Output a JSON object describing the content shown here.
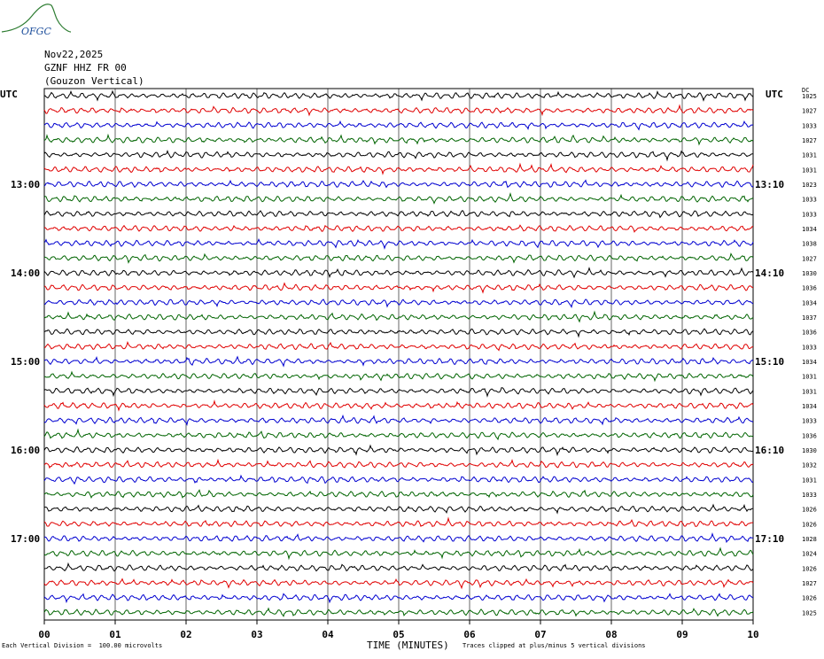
{
  "logo": {
    "text": "OFGC",
    "color": "#1e4f9c",
    "accent": "#2e7d32"
  },
  "header": {
    "date": "Nov22,2025",
    "station": "GZNF HHZ FR 00",
    "name": "(Gouzon Vertical)"
  },
  "chart_data": {
    "type": "line",
    "title": "",
    "xlabel": "TIME (MINUTES)",
    "x_ticks": [
      "00",
      "01",
      "02",
      "03",
      "04",
      "05",
      "06",
      "07",
      "08",
      "09",
      "10"
    ],
    "x_range": [
      0,
      10
    ],
    "left_axis_label": "UTC",
    "right_axis_label": "UTC",
    "dc_label": "DC",
    "left_hour_labels": [
      {
        "row": 6,
        "text": "13:00"
      },
      {
        "row": 12,
        "text": "14:00"
      },
      {
        "row": 18,
        "text": "15:00"
      },
      {
        "row": 24,
        "text": "16:00"
      },
      {
        "row": 30,
        "text": "17:00"
      }
    ],
    "right_hour_labels": [
      {
        "row": 6,
        "text": "13:10"
      },
      {
        "row": 12,
        "text": "14:10"
      },
      {
        "row": 18,
        "text": "15:10"
      },
      {
        "row": 24,
        "text": "16:10"
      },
      {
        "row": 30,
        "text": "17:10"
      }
    ],
    "trace_colors": [
      "#000000",
      "#e00000",
      "#0000d0",
      "#006400"
    ],
    "dc_offsets": [
      "1025",
      "1027",
      "1033",
      "1027",
      "1031",
      "1031",
      "1023",
      "1033",
      "1033",
      "1034",
      "1038",
      "1027",
      "1030",
      "1036",
      "1034",
      "1037",
      "1036",
      "1033",
      "1034",
      "1031",
      "1031",
      "1034",
      "1033",
      "1036",
      "1030",
      "1032",
      "1031",
      "1033",
      "1026",
      "1026",
      "1028",
      "1024",
      "1026",
      "1027",
      "1026",
      "1025"
    ],
    "grid": true,
    "amplitude_scale": "100.00 microvolts per vertical division"
  },
  "footer": {
    "left": "Each Vertical Division =  100.00 microvolts",
    "right": "Traces clipped at plus/minus 5 vertical divisions"
  }
}
